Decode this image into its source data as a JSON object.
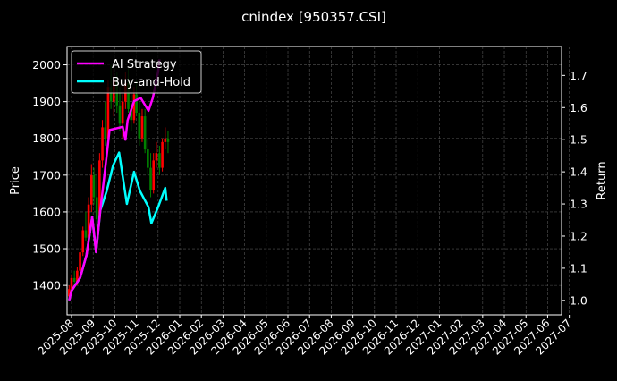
{
  "chart_data": {
    "type": "candlestick+line",
    "title": "cnindex [950357.CSI]",
    "ylabel_left": "Price",
    "ylabel_right": "Return",
    "ylim_left": [
      1320,
      2050
    ],
    "ylim_right": [
      0.955,
      1.79
    ],
    "yticks_left": [
      1400,
      1500,
      1600,
      1700,
      1800,
      1900,
      2000
    ],
    "yticks_right": [
      "1.0",
      "1.1",
      "1.2",
      "1.3",
      "1.4",
      "1.5",
      "1.6",
      "1.7"
    ],
    "xticks": [
      "2025-08",
      "2025-09",
      "2025-10",
      "2025-11",
      "2025-12",
      "2026-01",
      "2026-02",
      "2026-03",
      "2026-04",
      "2026-05",
      "2026-06",
      "2026-07",
      "2026-08",
      "2026-09",
      "2026-10",
      "2026-11",
      "2026-12",
      "2027-01",
      "2027-02",
      "2027-03",
      "2027-04",
      "2027-05",
      "2027-06",
      "2027-07"
    ],
    "grid": true,
    "legend_position": "top-left",
    "colors": {
      "up": "#ff0000",
      "down": "#008000",
      "ai": "#ff00ff",
      "bh": "#00ffff",
      "grid": "#555555"
    },
    "candles": [
      [
        "2025-07-28",
        1370,
        1400,
        1360,
        1390
      ],
      [
        "2025-08-01",
        1390,
        1430,
        1380,
        1420
      ],
      [
        "2025-08-05",
        1420,
        1440,
        1400,
        1410
      ],
      [
        "2025-08-09",
        1410,
        1450,
        1400,
        1440
      ],
      [
        "2025-08-13",
        1440,
        1500,
        1430,
        1490
      ],
      [
        "2025-08-17",
        1490,
        1560,
        1480,
        1550
      ],
      [
        "2025-08-21",
        1550,
        1600,
        1520,
        1530
      ],
      [
        "2025-08-25",
        1530,
        1640,
        1520,
        1620
      ],
      [
        "2025-08-29",
        1620,
        1730,
        1600,
        1700
      ],
      [
        "2025-09-02",
        1700,
        1720,
        1620,
        1640
      ],
      [
        "2025-09-06",
        1640,
        1700,
        1560,
        1580
      ],
      [
        "2025-09-10",
        1580,
        1760,
        1570,
        1740
      ],
      [
        "2025-09-14",
        1740,
        1850,
        1720,
        1830
      ],
      [
        "2025-09-18",
        1830,
        1900,
        1780,
        1800
      ],
      [
        "2025-09-22",
        1800,
        1960,
        1790,
        1940
      ],
      [
        "2025-09-26",
        1940,
        2000,
        1880,
        1900
      ],
      [
        "2025-09-30",
        1900,
        1990,
        1860,
        1960
      ],
      [
        "2025-10-04",
        1960,
        1980,
        1870,
        1890
      ],
      [
        "2025-10-08",
        1890,
        1940,
        1820,
        1840
      ],
      [
        "2025-10-12",
        1840,
        1920,
        1800,
        1900
      ],
      [
        "2025-10-16",
        1900,
        1980,
        1880,
        1950
      ],
      [
        "2025-10-20",
        1950,
        1990,
        1870,
        1880
      ],
      [
        "2025-10-24",
        1880,
        1920,
        1820,
        1850
      ],
      [
        "2025-10-28",
        1850,
        1940,
        1840,
        1920
      ],
      [
        "2025-11-01",
        1920,
        1960,
        1860,
        1870
      ],
      [
        "2025-11-05",
        1870,
        1900,
        1780,
        1800
      ],
      [
        "2025-11-09",
        1800,
        1880,
        1790,
        1860
      ],
      [
        "2025-11-13",
        1860,
        1880,
        1760,
        1770
      ],
      [
        "2025-11-17",
        1770,
        1800,
        1700,
        1720
      ],
      [
        "2025-11-21",
        1720,
        1760,
        1640,
        1660
      ],
      [
        "2025-11-25",
        1660,
        1760,
        1650,
        1740
      ],
      [
        "2025-11-29",
        1740,
        1790,
        1720,
        1760
      ],
      [
        "2025-12-03",
        1760,
        1780,
        1700,
        1720
      ],
      [
        "2025-12-07",
        1720,
        1800,
        1710,
        1790
      ],
      [
        "2025-12-11",
        1790,
        1830,
        1770,
        1800
      ],
      [
        "2025-12-15",
        1800,
        1820,
        1760,
        1790
      ]
    ],
    "series": [
      {
        "name": "AI Strategy",
        "points": [
          [
            "2025-07-28",
            1.0
          ],
          [
            "2025-08-01",
            1.03
          ],
          [
            "2025-08-13",
            1.07
          ],
          [
            "2025-08-22",
            1.14
          ],
          [
            "2025-08-30",
            1.26
          ],
          [
            "2025-09-05",
            1.15
          ],
          [
            "2025-09-11",
            1.28
          ],
          [
            "2025-09-20",
            1.45
          ],
          [
            "2025-09-24",
            1.53
          ],
          [
            "2025-10-12",
            1.54
          ],
          [
            "2025-10-16",
            1.5
          ],
          [
            "2025-10-19",
            1.56
          ],
          [
            "2025-10-28",
            1.62
          ],
          [
            "2025-11-07",
            1.63
          ],
          [
            "2025-11-18",
            1.59
          ],
          [
            "2025-11-24",
            1.63
          ],
          [
            "2025-12-01",
            1.71
          ],
          [
            "2025-12-03",
            1.75
          ]
        ]
      },
      {
        "name": "Buy-and-Hold",
        "points": [
          [
            "2025-07-28",
            1.0
          ],
          [
            "2025-08-01",
            1.03
          ],
          [
            "2025-08-13",
            1.07
          ],
          [
            "2025-08-22",
            1.14
          ],
          [
            "2025-08-30",
            1.26
          ],
          [
            "2025-09-05",
            1.15
          ],
          [
            "2025-09-11",
            1.28
          ],
          [
            "2025-09-20",
            1.34
          ],
          [
            "2025-09-29",
            1.42
          ],
          [
            "2025-10-07",
            1.46
          ],
          [
            "2025-10-18",
            1.3
          ],
          [
            "2025-10-28",
            1.4
          ],
          [
            "2025-11-06",
            1.34
          ],
          [
            "2025-11-18",
            1.29
          ],
          [
            "2025-11-22",
            1.24
          ],
          [
            "2025-12-01",
            1.29
          ],
          [
            "2025-12-11",
            1.35
          ],
          [
            "2025-12-13",
            1.31
          ]
        ]
      }
    ]
  }
}
